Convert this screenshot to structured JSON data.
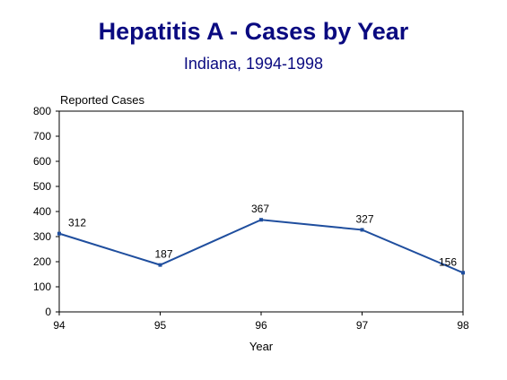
{
  "chart_data": {
    "type": "line",
    "title": "Hepatitis A - Cases by Year",
    "subtitle": "Indiana, 1994-1998",
    "xlabel": "Year",
    "ylabel": "Reported Cases",
    "categories": [
      "94",
      "95",
      "96",
      "97",
      "98"
    ],
    "series": [
      {
        "values": [
          312,
          187,
          367,
          327,
          156
        ]
      }
    ],
    "ylim": [
      0,
      800
    ],
    "yticks": [
      0,
      100,
      200,
      300,
      400,
      500,
      600,
      700,
      800
    ],
    "data_labels": [
      "312",
      "187",
      "367",
      "327",
      "156"
    ],
    "grid": false,
    "legend": "none",
    "line_color": "#1f4e9e"
  }
}
